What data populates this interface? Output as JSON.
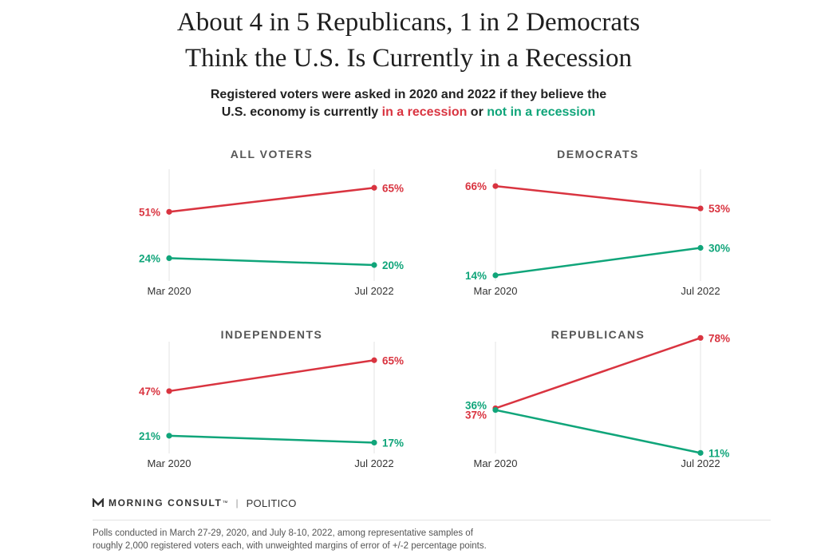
{
  "title_line1": "About 4 in 5 Republicans, 1 in 2 Democrats",
  "title_line2": "Think the U.S. Is Currently in a Recession",
  "subtitle_line1": "Registered voters were asked in 2020 and 2022 if they believe the",
  "subtitle_line2_prefix": "U.S. economy is currently ",
  "subtitle_red": "in a recession",
  "subtitle_or": " or ",
  "subtitle_green": "not in a recession",
  "colors": {
    "recession": "#d93440",
    "not_recession": "#10a57a",
    "gridline": "#e3e3e3"
  },
  "chart_data": [
    {
      "type": "line",
      "title": "ALL VOTERS",
      "x": [
        "Mar 2020",
        "Jul 2022"
      ],
      "ylim": [
        0,
        100
      ],
      "series": [
        {
          "name": "In a recession",
          "values": [
            51,
            65
          ],
          "labels": [
            "51%",
            "65%"
          ]
        },
        {
          "name": "Not in a recession",
          "values": [
            24,
            20
          ],
          "labels": [
            "24%",
            "20%"
          ]
        }
      ]
    },
    {
      "type": "line",
      "title": "DEMOCRATS",
      "x": [
        "Mar 2020",
        "Jul 2022"
      ],
      "ylim": [
        0,
        100
      ],
      "series": [
        {
          "name": "In a recession",
          "values": [
            66,
            53
          ],
          "labels": [
            "66%",
            "53%"
          ]
        },
        {
          "name": "Not in a recession",
          "values": [
            14,
            30
          ],
          "labels": [
            "14%",
            "30%"
          ]
        }
      ]
    },
    {
      "type": "line",
      "title": "INDEPENDENTS",
      "x": [
        "Mar 2020",
        "Jul 2022"
      ],
      "ylim": [
        0,
        100
      ],
      "series": [
        {
          "name": "In a recession",
          "values": [
            47,
            65
          ],
          "labels": [
            "47%",
            "65%"
          ]
        },
        {
          "name": "Not in a recession",
          "values": [
            21,
            17
          ],
          "labels": [
            "21%",
            "17%"
          ]
        }
      ]
    },
    {
      "type": "line",
      "title": "REPUBLICANS",
      "x": [
        "Mar 2020",
        "Jul 2022"
      ],
      "ylim": [
        0,
        100
      ],
      "series": [
        {
          "name": "In a recession",
          "values": [
            37,
            78
          ],
          "labels": [
            "37%",
            "78%"
          ]
        },
        {
          "name": "Not in a recession",
          "values": [
            36,
            11
          ],
          "labels": [
            "36%",
            "11%"
          ]
        }
      ]
    }
  ],
  "brand": {
    "logo_text": "MORNING CONSULT",
    "tm": "™",
    "separator": "|",
    "partner": "POLITICO"
  },
  "footnote_line1": "Polls conducted in March 27-29, 2020, and July 8-10, 2022, among representative samples of",
  "footnote_line2": "roughly 2,000 registered voters each, with unweighted margins of error of +/-2 percentage points."
}
